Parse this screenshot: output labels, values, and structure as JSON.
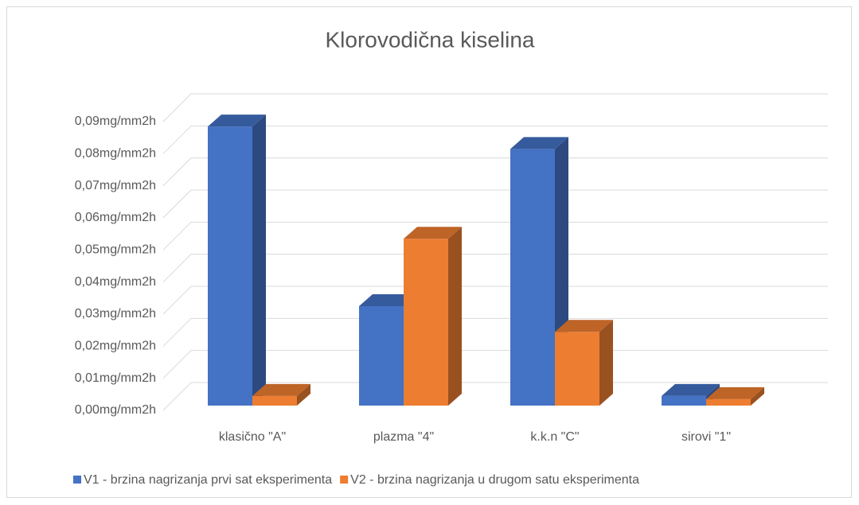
{
  "chart_data": {
    "type": "bar3d",
    "title": "Klorovodična kiselina",
    "categories": [
      "klasično \"A\"",
      "plazma \"4\"",
      "k.k.n \"C\"",
      "sirovi \"1\""
    ],
    "series": [
      {
        "name": "V1 - brzina nagrizanja prvi sat eksperimenta",
        "color": "#4472c4",
        "values": [
          0.087,
          0.031,
          0.08,
          0.003
        ]
      },
      {
        "name": "V2 - brzina nagrizanja u drugom satu eksperimenta",
        "color": "#ed7d31",
        "values": [
          0.003,
          0.052,
          0.023,
          0.002
        ]
      }
    ],
    "ylim": [
      0,
      0.09
    ],
    "yticks": [
      {
        "value": 0,
        "label": "0,00mg/mm2h"
      },
      {
        "value": 0.01,
        "label": "0,01mg/mm2h"
      },
      {
        "value": 0.02,
        "label": "0,02mg/mm2h"
      },
      {
        "value": 0.03,
        "label": "0,03mg/mm2h"
      },
      {
        "value": 0.04,
        "label": "0,04mg/mm2h"
      },
      {
        "value": 0.05,
        "label": "0,05mg/mm2h"
      },
      {
        "value": 0.06,
        "label": "0,06mg/mm2h"
      },
      {
        "value": 0.07,
        "label": "0,07mg/mm2h"
      },
      {
        "value": 0.08,
        "label": "0,08mg/mm2h"
      },
      {
        "value": 0.09,
        "label": "0,09mg/mm2h"
      }
    ],
    "grid": true,
    "legend": "bottom"
  }
}
